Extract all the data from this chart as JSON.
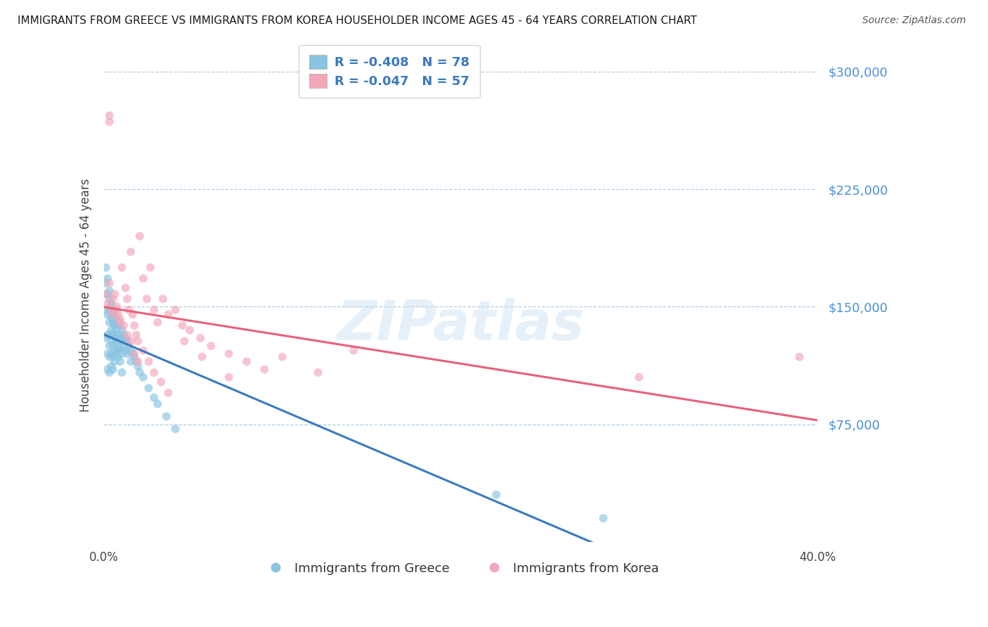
{
  "title": "IMMIGRANTS FROM GREECE VS IMMIGRANTS FROM KOREA HOUSEHOLDER INCOME AGES 45 - 64 YEARS CORRELATION CHART",
  "source": "Source: ZipAtlas.com",
  "ylabel": "Householder Income Ages 45 - 64 years",
  "legend_labels": [
    "Immigrants from Greece",
    "Immigrants from Korea"
  ],
  "legend_R": [
    -0.408,
    -0.047
  ],
  "legend_N": [
    78,
    57
  ],
  "blue_color": "#89c4e1",
  "pink_color": "#f4a7b9",
  "blue_line_color": "#3a7abf",
  "pink_line_color": "#e8607a",
  "watermark_text": "ZIPatlas",
  "yticks": [
    0,
    75000,
    150000,
    225000,
    300000
  ],
  "ytick_labels": [
    "",
    "$75,000",
    "$150,000",
    "$225,000",
    "$300,000"
  ],
  "xlim": [
    0.0,
    0.4
  ],
  "ylim": [
    0,
    315000
  ],
  "greece_x": [
    0.001,
    0.001,
    0.001,
    0.002,
    0.002,
    0.002,
    0.002,
    0.002,
    0.003,
    0.003,
    0.003,
    0.003,
    0.003,
    0.003,
    0.003,
    0.004,
    0.004,
    0.004,
    0.004,
    0.004,
    0.004,
    0.005,
    0.005,
    0.005,
    0.005,
    0.005,
    0.005,
    0.006,
    0.006,
    0.006,
    0.006,
    0.006,
    0.007,
    0.007,
    0.007,
    0.007,
    0.008,
    0.008,
    0.008,
    0.008,
    0.009,
    0.009,
    0.009,
    0.01,
    0.01,
    0.01,
    0.011,
    0.011,
    0.012,
    0.012,
    0.013,
    0.013,
    0.014,
    0.015,
    0.015,
    0.016,
    0.017,
    0.018,
    0.019,
    0.02,
    0.022,
    0.025,
    0.028,
    0.03,
    0.035,
    0.04,
    0.001,
    0.002,
    0.003,
    0.004,
    0.005,
    0.006,
    0.007,
    0.008,
    0.009,
    0.01,
    0.22,
    0.28
  ],
  "greece_y": [
    165000,
    148000,
    130000,
    158000,
    145000,
    132000,
    120000,
    110000,
    155000,
    148000,
    140000,
    132000,
    125000,
    118000,
    108000,
    150000,
    143000,
    135000,
    128000,
    120000,
    112000,
    148000,
    140000,
    133000,
    125000,
    118000,
    110000,
    145000,
    138000,
    130000,
    122000,
    115000,
    142000,
    135000,
    128000,
    120000,
    140000,
    132000,
    125000,
    118000,
    138000,
    130000,
    123000,
    135000,
    128000,
    120000,
    132000,
    125000,
    130000,
    122000,
    128000,
    120000,
    125000,
    122000,
    115000,
    120000,
    118000,
    115000,
    112000,
    108000,
    105000,
    98000,
    92000,
    88000,
    80000,
    72000,
    175000,
    168000,
    160000,
    152000,
    145000,
    138000,
    130000,
    122000,
    115000,
    108000,
    30000,
    15000
  ],
  "korea_x": [
    0.001,
    0.002,
    0.003,
    0.003,
    0.004,
    0.005,
    0.006,
    0.007,
    0.008,
    0.009,
    0.01,
    0.012,
    0.013,
    0.014,
    0.015,
    0.016,
    0.017,
    0.018,
    0.019,
    0.02,
    0.022,
    0.024,
    0.026,
    0.028,
    0.03,
    0.033,
    0.036,
    0.04,
    0.044,
    0.048,
    0.054,
    0.06,
    0.07,
    0.08,
    0.09,
    0.1,
    0.12,
    0.14,
    0.003,
    0.005,
    0.007,
    0.009,
    0.011,
    0.013,
    0.015,
    0.017,
    0.019,
    0.022,
    0.025,
    0.028,
    0.032,
    0.036,
    0.045,
    0.055,
    0.07,
    0.3,
    0.39
  ],
  "korea_y": [
    158000,
    152000,
    272000,
    268000,
    148000,
    145000,
    158000,
    150000,
    145000,
    140000,
    175000,
    162000,
    155000,
    148000,
    185000,
    145000,
    138000,
    132000,
    128000,
    195000,
    168000,
    155000,
    175000,
    148000,
    140000,
    155000,
    145000,
    148000,
    138000,
    135000,
    130000,
    125000,
    120000,
    115000,
    110000,
    118000,
    108000,
    122000,
    165000,
    155000,
    148000,
    142000,
    138000,
    132000,
    128000,
    120000,
    115000,
    122000,
    115000,
    108000,
    102000,
    95000,
    128000,
    118000,
    105000,
    105000,
    118000
  ]
}
